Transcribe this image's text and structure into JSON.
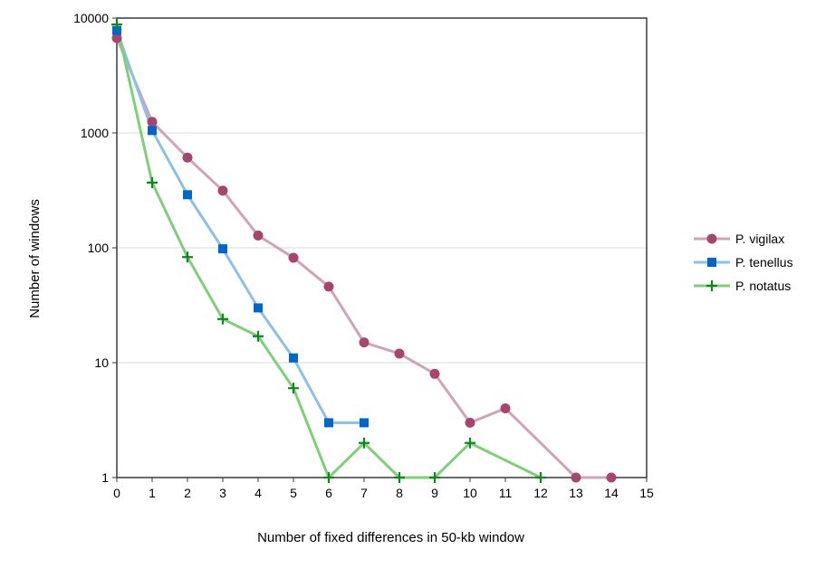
{
  "chart_data": {
    "type": "line",
    "title": "",
    "xlabel": "Number of fixed differences in 50-kb window",
    "ylabel": "Number of windows",
    "x_scale": "linear",
    "y_scale": "log",
    "xlim": [
      0,
      15
    ],
    "ylim": [
      1,
      10000
    ],
    "x_ticks": [
      "0",
      "1",
      "2",
      "3",
      "4",
      "5",
      "6",
      "7",
      "8",
      "9",
      "10",
      "11",
      "12",
      "13",
      "14",
      "15"
    ],
    "y_ticks": [
      "1",
      "10",
      "100",
      "1000",
      "10000"
    ],
    "grid": "horizontal",
    "legend_position": "right",
    "series": [
      {
        "name": "P. vigilax",
        "color": "#a8456e",
        "line_color": "#cfa3b9",
        "marker": "circle",
        "x": [
          0,
          1,
          2,
          3,
          4,
          5,
          6,
          7,
          8,
          9,
          10,
          11,
          13,
          14
        ],
        "values": [
          6700,
          1250,
          610,
          315,
          128,
          82,
          46,
          15,
          12,
          8,
          3,
          4,
          1,
          1
        ]
      },
      {
        "name": "P. tenellus",
        "color": "#0066cc",
        "line_color": "#8dbfe8",
        "marker": "square",
        "x": [
          0,
          1,
          2,
          3,
          4,
          5,
          6,
          7
        ],
        "values": [
          7800,
          1050,
          290,
          98,
          30,
          11,
          3,
          3
        ]
      },
      {
        "name": "P. notatus",
        "color": "#0a8a18",
        "line_color": "#7fcf7a",
        "marker": "plus",
        "x": [
          0,
          1,
          2,
          3,
          4,
          5,
          6,
          7,
          8,
          9,
          10,
          12
        ],
        "values": [
          8800,
          370,
          83,
          24,
          17,
          6,
          1,
          2,
          1,
          1,
          2,
          1
        ]
      }
    ]
  }
}
